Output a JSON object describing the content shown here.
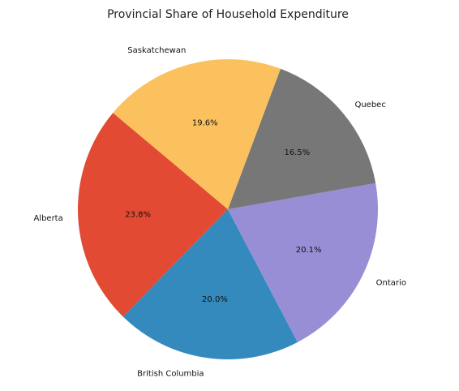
{
  "chart_data": {
    "type": "pie",
    "title": "Provincial Share of Household Expenditure",
    "slices": [
      {
        "label": "Alberta",
        "value": 23.8,
        "pct_label": "23.8%",
        "color": "#E24A33"
      },
      {
        "label": "British Columbia",
        "value": 20.0,
        "pct_label": "20.0%",
        "color": "#348ABD"
      },
      {
        "label": "Ontario",
        "value": 20.1,
        "pct_label": "20.1%",
        "color": "#988ED5"
      },
      {
        "label": "Quebec",
        "value": 16.5,
        "pct_label": "16.5%",
        "color": "#777777"
      },
      {
        "label": "Saskatchewan",
        "value": 19.6,
        "pct_label": "19.6%",
        "color": "#FBC15E"
      }
    ],
    "legend": "none"
  }
}
